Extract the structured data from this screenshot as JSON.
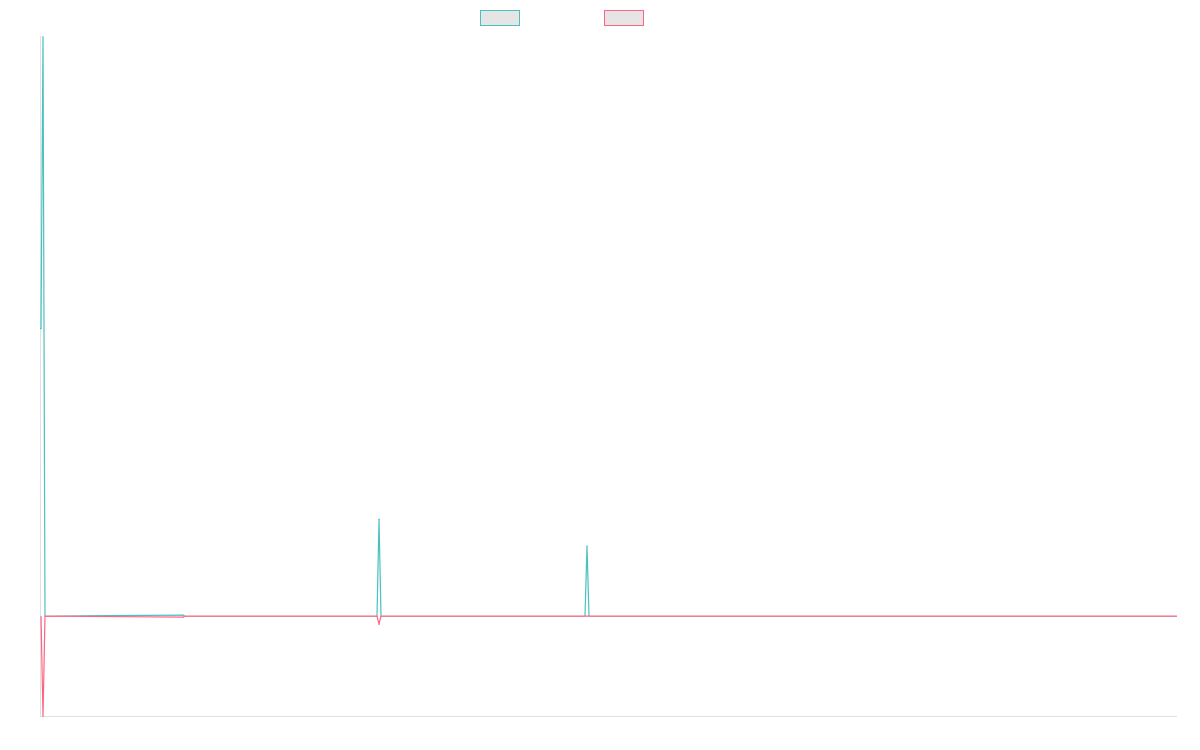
{
  "chart_data": {
    "type": "line",
    "title": "",
    "xlabel": "",
    "ylabel": "",
    "xlim": [
      0,
      568
    ],
    "ylim": [
      -100,
      581
    ],
    "grid": false,
    "legend": "top",
    "series": [
      {
        "color": "#4bc0c0",
        "points": [
          [
            0,
            288
          ],
          [
            1,
            580
          ],
          [
            2,
            0
          ],
          [
            71,
            1
          ],
          [
            72,
            0
          ],
          [
            168,
            0
          ],
          [
            169,
            97
          ],
          [
            170,
            0
          ],
          [
            272,
            0
          ],
          [
            273,
            70
          ],
          [
            274,
            0
          ],
          [
            568,
            0
          ]
        ]
      },
      {
        "color": "#ff6384",
        "points": [
          [
            0,
            0
          ],
          [
            1,
            -100
          ],
          [
            2,
            0
          ],
          [
            71,
            -1
          ],
          [
            72,
            0
          ],
          [
            168,
            0
          ],
          [
            169,
            -8
          ],
          [
            170,
            0
          ],
          [
            568,
            0
          ]
        ]
      }
    ]
  }
}
